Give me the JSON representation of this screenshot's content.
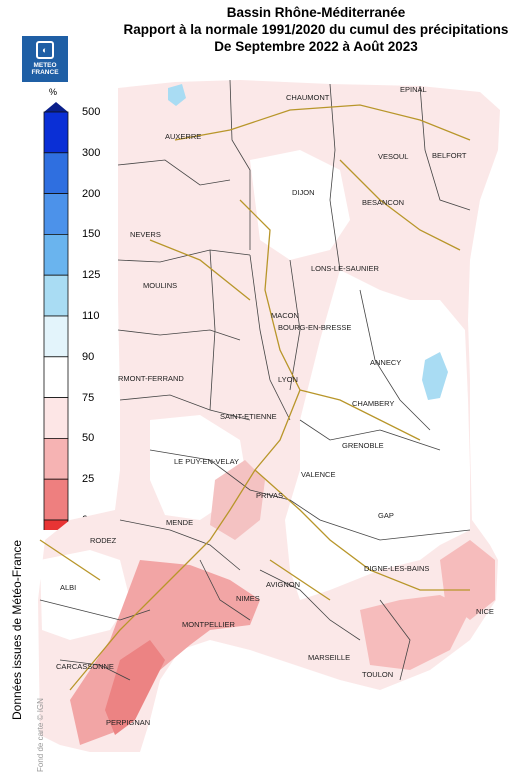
{
  "title": {
    "line1": "Bassin Rhône-Méditerranée",
    "line2": "Rapport à la normale 1991/2020 du cumul des précipitations",
    "line3": "De Septembre 2022 à Août 2023"
  },
  "logo": {
    "line1": "METEO",
    "line2": "FRANCE"
  },
  "legend": {
    "unit": "%",
    "ticks": [
      "500",
      "300",
      "200",
      "150",
      "125",
      "110",
      "90",
      "75",
      "50",
      "25",
      "0"
    ],
    "colors": [
      "#0a2fd6",
      "#2f6fe0",
      "#4c92ea",
      "#6ab4ee",
      "#a9dcf3",
      "#e3f4fb",
      "#ffffff",
      "#fde6e6",
      "#f6b3b3",
      "#ee7f7f",
      "#e83434"
    ]
  },
  "credit": "Données issues de Météo-France",
  "background_credit": "Fond de carte © IGN",
  "cities": [
    "CHAUMONT",
    "EPINAL",
    "AUXERRE",
    "VESOUL",
    "BELFORT",
    "DIJON",
    "BESANCON",
    "NEVERS",
    "LONS-LE-SAUNIER",
    "MOULINS",
    "MACON",
    "BOURG-EN-BRESSE",
    "ANNECY",
    "RMONT-FERRAND",
    "LYON",
    "CHAMBERY",
    "SAINT-ETIENNE",
    "GRENOBLE",
    "LE PUY-EN-VELAY",
    "VALENCE",
    "PRIVAS",
    "MENDE",
    "GAP",
    "RODEZ",
    "DIGNE-LES-BAINS",
    "ALBI",
    "AVIGNON",
    "NIMES",
    "NICE",
    "MONTPELLIER",
    "MARSEILLE",
    "CARCASSONNE",
    "TOULON",
    "PERPIGNAN"
  ]
}
